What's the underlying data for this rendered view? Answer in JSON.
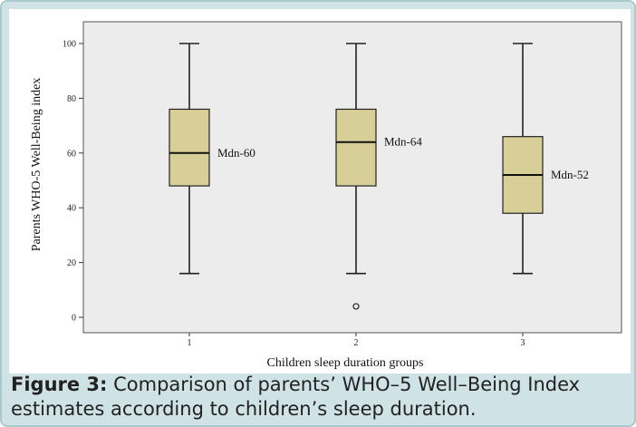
{
  "chart_data": {
    "type": "boxplot",
    "xlabel": "Children sleep duration groups",
    "ylabel": "Parents WHO-5 Well-Being index",
    "ylim": [
      0,
      100
    ],
    "yticks": [
      0,
      20,
      40,
      60,
      80,
      100
    ],
    "categories": [
      "1",
      "2",
      "3"
    ],
    "boxes": [
      {
        "category": "1",
        "min": 16,
        "q1": 48,
        "median": 60,
        "q3": 76,
        "max": 100,
        "outliers": [],
        "annotation": "Mdn-60"
      },
      {
        "category": "2",
        "min": 16,
        "q1": 48,
        "median": 64,
        "q3": 76,
        "max": 100,
        "outliers": [
          4
        ],
        "annotation": "Mdn-64"
      },
      {
        "category": "3",
        "min": 16,
        "q1": 38,
        "median": 52,
        "q3": 66,
        "max": 100,
        "outliers": [],
        "annotation": "Mdn-52"
      }
    ],
    "grid": false,
    "colors": {
      "box_fill": "#d8cf98",
      "box_stroke": "#222222",
      "plot_bg": "#ececec"
    }
  },
  "caption": {
    "label": "Figure 3:",
    "text": " Comparison of parents’ WHO–5 Well–Being Index estimates according to children’s sleep duration."
  },
  "colors": {
    "frame_bg": "#cfe3e6"
  }
}
